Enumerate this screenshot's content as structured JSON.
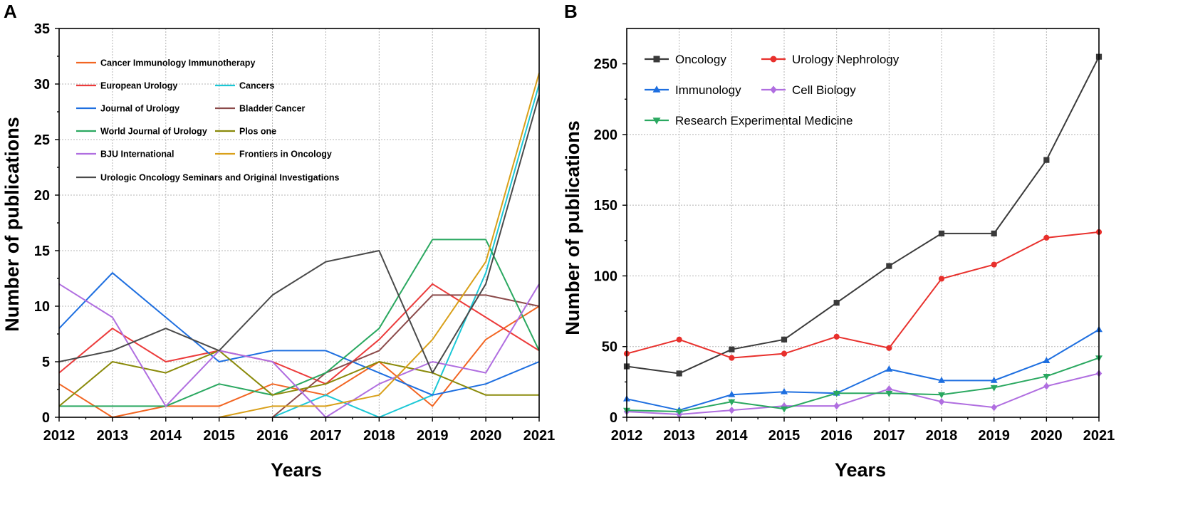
{
  "chart_data": [
    {
      "panel": "A",
      "type": "line",
      "xlabel": "Years",
      "ylabel": "Number of publications",
      "x": [
        2012,
        2013,
        2014,
        2015,
        2016,
        2017,
        2018,
        2019,
        2020,
        2021
      ],
      "xlim": [
        2012,
        2021
      ],
      "ylim": [
        0,
        35
      ],
      "yticks": [
        0,
        5,
        10,
        15,
        20,
        25,
        30,
        35
      ],
      "grid": true,
      "legend": "upper-left",
      "series": [
        {
          "name": "Cancer Immunology Immunotherapy",
          "color": "#f26522",
          "values": [
            3,
            0,
            1,
            1,
            3,
            2,
            5,
            1,
            7,
            10
          ]
        },
        {
          "name": "European Urology",
          "color": "#ec3b3b",
          "values": [
            4,
            8,
            5,
            6,
            5,
            3,
            7,
            12,
            9,
            6
          ]
        },
        {
          "name": "Cancers",
          "color": "#1cc8d6",
          "values": [
            null,
            null,
            null,
            null,
            0,
            2,
            0,
            2,
            13,
            30
          ]
        },
        {
          "name": "Journal of Urology",
          "color": "#1e6fe0",
          "values": [
            8,
            13,
            9,
            5,
            6,
            6,
            4,
            2,
            3,
            5
          ]
        },
        {
          "name": "Bladder Cancer",
          "color": "#8b4a4a",
          "values": [
            null,
            null,
            null,
            null,
            0,
            4,
            6,
            11,
            11,
            10
          ]
        },
        {
          "name": "World Journal of Urology",
          "color": "#2aa860",
          "values": [
            1,
            1,
            1,
            3,
            2,
            4,
            8,
            16,
            16,
            6
          ]
        },
        {
          "name": "Plos one",
          "color": "#8a8a0a",
          "values": [
            1,
            5,
            4,
            6,
            2,
            3,
            5,
            4,
            2,
            2
          ]
        },
        {
          "name": "BJU International",
          "color": "#b06ee0",
          "values": [
            12,
            9,
            1,
            6,
            5,
            0,
            3,
            5,
            4,
            12
          ]
        },
        {
          "name": "Frontiers in Oncology",
          "color": "#d9a01a",
          "values": [
            null,
            null,
            null,
            0,
            1,
            1,
            2,
            7,
            14,
            31
          ]
        },
        {
          "name": "Urologic Oncology Seminars and Original Investigations",
          "color": "#4a4a4a",
          "values": [
            5,
            6,
            8,
            6,
            11,
            14,
            15,
            4,
            12,
            29
          ]
        }
      ]
    },
    {
      "panel": "B",
      "type": "line",
      "xlabel": "Years",
      "ylabel": "Number of publications",
      "x": [
        2012,
        2013,
        2014,
        2015,
        2016,
        2017,
        2018,
        2019,
        2020,
        2021
      ],
      "xlim": [
        2012,
        2021
      ],
      "ylim": [
        0,
        275
      ],
      "yticks": [
        0,
        50,
        100,
        150,
        200,
        250
      ],
      "grid": true,
      "legend": "upper-left",
      "series": [
        {
          "name": "Oncology",
          "color": "#3a3a3a",
          "marker": "square",
          "values": [
            36,
            31,
            48,
            55,
            81,
            107,
            130,
            130,
            182,
            255
          ]
        },
        {
          "name": "Urology Nephrology",
          "color": "#e8302c",
          "marker": "circle",
          "values": [
            45,
            55,
            42,
            45,
            57,
            49,
            98,
            108,
            127,
            131
          ]
        },
        {
          "name": "Immunology",
          "color": "#1e6fe0",
          "marker": "triangle-up",
          "values": [
            13,
            5,
            16,
            18,
            17,
            34,
            26,
            26,
            40,
            62
          ]
        },
        {
          "name": "Cell Biology",
          "color": "#b06ee0",
          "marker": "diamond",
          "values": [
            4,
            2,
            5,
            8,
            8,
            20,
            11,
            7,
            22,
            31
          ]
        },
        {
          "name": "Research Experimental Medicine",
          "color": "#2aa860",
          "marker": "triangle-down",
          "values": [
            5,
            4,
            11,
            6,
            17,
            17,
            16,
            21,
            29,
            42
          ]
        }
      ]
    }
  ]
}
